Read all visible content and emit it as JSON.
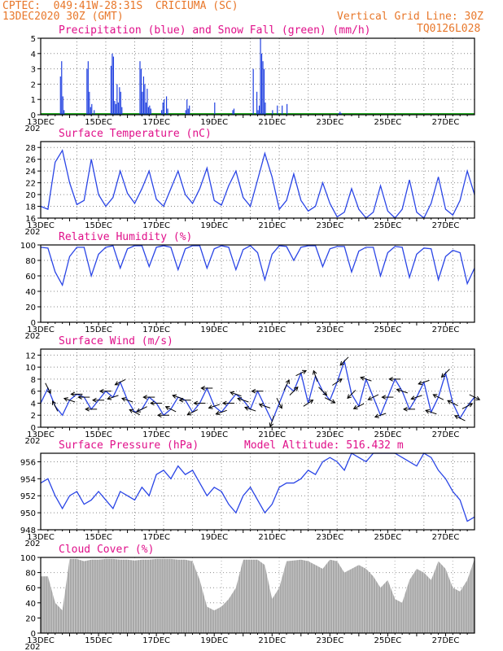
{
  "header": {
    "line1": "CPTEC:  049:41W-28:31S  CRICIUMA (SC)",
    "line2": "13DEC2020 30Z (GMT)",
    "grid_note": "Vertical Grid Line: 30Z",
    "run_id": "TQ0126L028",
    "altitude_label": "Model Altitude: 516.432 m"
  },
  "x_axis": {
    "start_hour": 0,
    "end_hour": 360,
    "tick_labels": [
      "13DEC",
      "15DEC",
      "17DEC",
      "19DEC",
      "21DEC",
      "23DEC",
      "25DEC",
      "27DEC"
    ],
    "tick_hours": [
      0,
      48,
      96,
      144,
      192,
      240,
      288,
      336
    ],
    "year_stub": "202"
  },
  "colors": {
    "header": "#e8772a",
    "title": "#e0108a",
    "line": "#2a45e6",
    "precip": "#1f3fe0",
    "snow": "#1fa51f",
    "cloud": "#a8a8a8",
    "arrow": "#000000"
  },
  "chart_data": [
    {
      "id": "precip",
      "type": "bar",
      "title": "Precipitation (blue) and Snow Fall (green) (mm/h)",
      "ylabel": "mm/h",
      "ylim": [
        0,
        5
      ],
      "yticks": [
        0,
        1,
        2,
        3,
        4,
        5
      ],
      "grid": true,
      "series": [
        {
          "name": "Precipitation",
          "color": "#1f3fe0",
          "x": [
            16,
            17,
            18,
            19,
            38,
            39,
            40,
            41,
            42,
            44,
            58,
            59,
            60,
            61,
            62,
            63,
            64,
            65,
            66,
            67,
            82,
            83,
            84,
            85,
            86,
            87,
            88,
            89,
            90,
            91,
            100,
            101,
            102,
            104,
            105,
            120,
            121,
            122,
            123,
            144,
            159,
            160,
            176,
            179,
            180,
            181,
            182,
            183,
            184,
            185,
            186,
            192,
            196,
            200,
            204,
            247,
            248,
            249
          ],
          "values": [
            2.5,
            3.5,
            1.2,
            0.3,
            3.0,
            3.5,
            1.5,
            0.5,
            0.7,
            0.3,
            3.2,
            4.0,
            3.8,
            0.9,
            0.7,
            2.0,
            0.8,
            1.8,
            1.5,
            0.5,
            3.5,
            3.0,
            1.5,
            2.5,
            2.0,
            0.8,
            1.7,
            0.5,
            0.6,
            0.4,
            0.3,
            0.8,
            1.0,
            1.2,
            0.4,
            0.3,
            1.0,
            0.4,
            0.6,
            0.8,
            0.3,
            0.4,
            3.0,
            1.5,
            0.3,
            0.6,
            5.0,
            4.0,
            3.5,
            3.0,
            0.8,
            0.3,
            0.6,
            0.6,
            0.7,
            0.1,
            0.2,
            0.1
          ]
        },
        {
          "name": "Snow Fall",
          "color": "#1fa51f",
          "x": [],
          "values": []
        }
      ]
    },
    {
      "id": "temperature",
      "type": "line",
      "title": "Surface Temperature (nC)",
      "ylabel": "nC",
      "ylim": [
        16,
        29
      ],
      "yticks": [
        16,
        18,
        20,
        22,
        24,
        26,
        28
      ],
      "grid": true,
      "series": [
        {
          "name": "Temperature",
          "x": [
            0,
            6,
            12,
            18,
            24,
            30,
            36,
            42,
            48,
            54,
            60,
            66,
            72,
            78,
            84,
            90,
            96,
            102,
            108,
            114,
            120,
            126,
            132,
            138,
            144,
            150,
            156,
            162,
            168,
            174,
            180,
            186,
            192,
            198,
            204,
            210,
            216,
            222,
            228,
            234,
            240,
            246,
            252,
            258,
            264,
            270,
            276,
            282,
            288,
            294,
            300,
            306,
            312,
            318,
            324,
            330,
            336,
            342,
            348,
            354,
            360
          ],
          "values": [
            18.0,
            17.5,
            25.5,
            27.5,
            22.0,
            18.3,
            19.0,
            26.0,
            20.0,
            18.0,
            19.5,
            24.0,
            20.2,
            18.5,
            21.0,
            24.0,
            19.2,
            18.0,
            21.0,
            24.0,
            20.0,
            18.5,
            21.0,
            24.5,
            19.0,
            18.2,
            21.5,
            24.0,
            19.5,
            18.0,
            22.5,
            27.0,
            23.0,
            17.5,
            19.0,
            23.5,
            19.0,
            17.2,
            18.0,
            22.0,
            18.5,
            16.2,
            17.0,
            21.0,
            17.5,
            16.0,
            17.0,
            21.5,
            17.2,
            16.0,
            17.5,
            22.5,
            17.0,
            16.0,
            18.5,
            23.0,
            17.5,
            16.5,
            19.0,
            24.0,
            20.0
          ]
        }
      ]
    },
    {
      "id": "humidity",
      "type": "line",
      "title": "Relative Humidity (%)",
      "ylabel": "%",
      "ylim": [
        0,
        100
      ],
      "yticks": [
        0,
        20,
        40,
        60,
        80,
        100
      ],
      "grid": true,
      "series": [
        {
          "name": "Relative Humidity",
          "x": [
            0,
            6,
            12,
            18,
            24,
            30,
            36,
            42,
            48,
            54,
            60,
            66,
            72,
            78,
            84,
            90,
            96,
            102,
            108,
            114,
            120,
            126,
            132,
            138,
            144,
            150,
            156,
            162,
            168,
            174,
            180,
            186,
            192,
            198,
            204,
            210,
            216,
            222,
            228,
            234,
            240,
            246,
            252,
            258,
            264,
            270,
            276,
            282,
            288,
            294,
            300,
            306,
            312,
            318,
            324,
            330,
            336,
            342,
            348,
            354,
            360
          ],
          "values": [
            97,
            96,
            65,
            48,
            85,
            97,
            97,
            60,
            88,
            97,
            99,
            70,
            95,
            99,
            99,
            72,
            97,
            99,
            97,
            68,
            95,
            99,
            99,
            70,
            95,
            99,
            97,
            68,
            94,
            99,
            90,
            55,
            88,
            99,
            98,
            80,
            97,
            99,
            99,
            72,
            95,
            98,
            98,
            65,
            92,
            97,
            97,
            60,
            90,
            98,
            97,
            58,
            88,
            96,
            95,
            55,
            85,
            93,
            90,
            50,
            70
          ]
        }
      ]
    },
    {
      "id": "wind",
      "type": "line",
      "title": "Surface Wind (m/s)",
      "ylabel": "m/s",
      "ylim": [
        0,
        13
      ],
      "yticks": [
        0,
        2,
        4,
        6,
        8,
        10,
        12
      ],
      "grid": true,
      "series": [
        {
          "name": "Wind Speed",
          "x": [
            0,
            6,
            12,
            18,
            24,
            30,
            36,
            42,
            48,
            54,
            60,
            66,
            72,
            78,
            84,
            90,
            96,
            102,
            108,
            114,
            120,
            126,
            132,
            138,
            144,
            150,
            156,
            162,
            168,
            174,
            180,
            186,
            192,
            198,
            204,
            210,
            216,
            222,
            228,
            234,
            240,
            246,
            252,
            258,
            264,
            270,
            276,
            282,
            288,
            294,
            300,
            306,
            312,
            318,
            324,
            330,
            336,
            342,
            348,
            354,
            360
          ],
          "values": [
            4.0,
            6.5,
            3.5,
            2.0,
            4.5,
            5.5,
            5.0,
            3.0,
            4.5,
            6.0,
            5.0,
            7.5,
            4.5,
            2.5,
            3.0,
            5.0,
            4.0,
            2.0,
            3.0,
            5.0,
            4.5,
            2.5,
            4.0,
            6.5,
            3.5,
            2.5,
            4.0,
            5.5,
            4.5,
            3.0,
            6.0,
            3.5,
            1.0,
            4.0,
            7.0,
            6.0,
            9.0,
            4.0,
            8.5,
            6.0,
            4.5,
            7.5,
            11.0,
            5.5,
            3.5,
            8.0,
            5.0,
            2.0,
            5.0,
            8.0,
            6.0,
            3.0,
            5.0,
            7.5,
            2.5,
            5.0,
            9.0,
            4.0,
            1.5,
            3.5,
            5.0
          ]
        },
        {
          "name": "Wind Vectors",
          "x": [
            6,
            12,
            24,
            30,
            36,
            42,
            48,
            54,
            60,
            66,
            72,
            78,
            84,
            90,
            96,
            102,
            108,
            114,
            120,
            126,
            132,
            138,
            144,
            150,
            156,
            162,
            168,
            174,
            180,
            186,
            192,
            198,
            204,
            210,
            216,
            222,
            228,
            234,
            240,
            246,
            252,
            258,
            264,
            270,
            276,
            282,
            288,
            294,
            300,
            306,
            312,
            318,
            324,
            330,
            336,
            342,
            348,
            354,
            360
          ],
          "u": [
            1,
            -1,
            -3,
            -3,
            -2,
            -3,
            -3,
            -2,
            -3,
            -2,
            -3,
            -2,
            -2,
            -3,
            -3,
            -2,
            -2,
            -3,
            -2,
            -2,
            -3,
            -3,
            -3,
            -3,
            -3,
            -3,
            -3,
            -3,
            -3,
            -3,
            -1,
            1,
            1,
            2,
            2,
            3,
            -1,
            2,
            2,
            3,
            -2,
            -2,
            -2,
            -3,
            -2,
            -3,
            -3,
            -3,
            -3,
            -3,
            -3,
            -3,
            -3,
            -2,
            -2,
            -2,
            -2,
            2,
            2
          ],
          "v": [
            -2,
            2,
            1,
            0,
            0,
            0,
            0,
            0,
            -1,
            -1,
            1,
            1,
            -1,
            0,
            0,
            0,
            1,
            1,
            0,
            -1,
            0,
            0,
            -1,
            -1,
            0,
            1,
            1,
            1,
            0,
            1,
            -3,
            -2,
            2,
            2,
            1,
            2,
            3,
            -2,
            -1,
            2,
            -2,
            -2,
            -1,
            1,
            -1,
            -1,
            0,
            0,
            1,
            0,
            -1,
            -1,
            1,
            1,
            -2,
            1,
            1,
            1,
            -1
          ]
        }
      ]
    },
    {
      "id": "pressure",
      "type": "line",
      "title": "Surface Pressure (hPa)",
      "ylabel": "hPa",
      "ylim": [
        948,
        957
      ],
      "yticks": [
        948,
        950,
        952,
        954,
        956
      ],
      "grid": true,
      "series": [
        {
          "name": "Surface Pressure",
          "x": [
            0,
            6,
            12,
            18,
            24,
            30,
            36,
            42,
            48,
            54,
            60,
            66,
            72,
            78,
            84,
            90,
            96,
            102,
            108,
            114,
            120,
            126,
            132,
            138,
            144,
            150,
            156,
            162,
            168,
            174,
            180,
            186,
            192,
            198,
            204,
            210,
            216,
            222,
            228,
            234,
            240,
            246,
            252,
            258,
            264,
            270,
            276,
            282,
            288,
            294,
            300,
            306,
            312,
            318,
            324,
            330,
            336,
            342,
            348,
            354,
            360
          ],
          "values": [
            953.5,
            954.0,
            952.0,
            950.5,
            952.0,
            952.5,
            951.0,
            951.5,
            952.5,
            951.5,
            950.5,
            952.5,
            952.0,
            951.5,
            953.0,
            952.0,
            954.5,
            955.0,
            954.0,
            955.5,
            954.5,
            955.0,
            953.5,
            952.0,
            953.0,
            952.5,
            951.0,
            950.0,
            952.0,
            953.0,
            951.5,
            950.0,
            951.0,
            953.0,
            953.5,
            953.5,
            954.0,
            955.0,
            954.5,
            956.0,
            956.5,
            956.0,
            955.0,
            957.0,
            956.5,
            956.0,
            958.0,
            957.0,
            957.5,
            957.0,
            956.5,
            956.0,
            955.5,
            957.0,
            956.5,
            955.0,
            954.0,
            952.5,
            951.5,
            949.0,
            949.5
          ]
        }
      ]
    },
    {
      "id": "cloud",
      "type": "bar",
      "title": "Cloud Cover (%)",
      "ylabel": "%",
      "ylim": [
        0,
        100
      ],
      "yticks": [
        0,
        20,
        40,
        60,
        80,
        100
      ],
      "grid": true,
      "series": [
        {
          "name": "Cloud Cover",
          "x": [
            0,
            6,
            12,
            18,
            24,
            30,
            36,
            42,
            48,
            54,
            60,
            66,
            72,
            78,
            84,
            90,
            96,
            102,
            108,
            114,
            120,
            126,
            132,
            138,
            144,
            150,
            156,
            162,
            168,
            174,
            180,
            186,
            192,
            198,
            204,
            210,
            216,
            222,
            228,
            234,
            240,
            246,
            252,
            258,
            264,
            270,
            276,
            282,
            288,
            294,
            300,
            306,
            312,
            318,
            324,
            330,
            336,
            342,
            348,
            354,
            360
          ],
          "values": [
            75,
            75,
            40,
            30,
            98,
            98,
            95,
            97,
            97,
            98,
            98,
            97,
            97,
            96,
            97,
            97,
            98,
            98,
            98,
            97,
            97,
            95,
            70,
            35,
            30,
            35,
            45,
            60,
            97,
            97,
            97,
            90,
            45,
            60,
            95,
            96,
            97,
            95,
            90,
            85,
            97,
            95,
            80,
            85,
            90,
            85,
            75,
            60,
            70,
            45,
            40,
            70,
            85,
            80,
            70,
            95,
            85,
            60,
            55,
            70,
            98
          ]
        }
      ]
    }
  ]
}
